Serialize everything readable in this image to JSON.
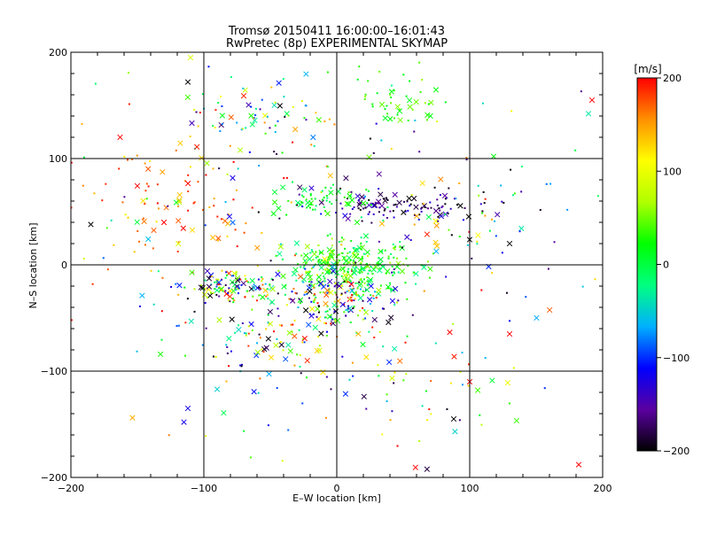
{
  "chart_data": {
    "type": "scatter",
    "title": "Tromsø 20150411 16:00:00–16:01:43",
    "subtitle": "RwPretec (8p) EXPERIMENTAL SKYMAP",
    "xlabel": "E–W location [km]",
    "ylabel": "N–S location [km]",
    "xlim": [
      -200,
      200
    ],
    "ylim": [
      -200,
      200
    ],
    "x_ticks": [
      -200,
      -100,
      0,
      100,
      200
    ],
    "y_ticks": [
      -200,
      -100,
      0,
      100,
      200
    ],
    "x_tick_labels": [
      "−200",
      "−100",
      "0",
      "100",
      "200"
    ],
    "y_tick_labels": [
      "−200",
      "−100",
      "0",
      "100",
      "200"
    ],
    "grid": true,
    "colorbar": {
      "label": "[m/s]",
      "range": [
        -200,
        200
      ],
      "ticks": [
        200,
        100,
        0,
        -100,
        -200
      ],
      "tick_labels": [
        "200",
        "100",
        "0",
        "−100",
        "−200"
      ],
      "colors": [
        "#000000",
        "#5a00a0",
        "#0000ff",
        "#00b0ff",
        "#00ff80",
        "#00ff00",
        "#b0ff00",
        "#ffff00",
        "#ff9000",
        "#ff0000"
      ]
    },
    "marker_legend": {
      "dot": "small point",
      "cross": "x marker"
    },
    "clusters": [
      {
        "x": 50,
        "y": 155,
        "sx": 13,
        "sy": 12,
        "n": 45,
        "vmin": 10,
        "vmax": 60
      },
      {
        "x": -55,
        "y": 140,
        "sx": 30,
        "sy": 18,
        "n": 70,
        "vmin": -210,
        "vmax": 200
      },
      {
        "x": 50,
        "y": 55,
        "sx": 35,
        "sy": 7,
        "n": 110,
        "vmin": -210,
        "vmax": -120
      },
      {
        "x": -10,
        "y": 62,
        "sx": 20,
        "sy": 8,
        "n": 60,
        "vmin": -20,
        "vmax": 40
      },
      {
        "x": 10,
        "y": 0,
        "sx": 22,
        "sy": 12,
        "n": 260,
        "vmin": -30,
        "vmax": 70
      },
      {
        "x": -80,
        "y": -20,
        "sx": 18,
        "sy": 8,
        "n": 110,
        "vmin": -210,
        "vmax": 210
      },
      {
        "x": 0,
        "y": -35,
        "sx": 20,
        "sy": 15,
        "n": 170,
        "vmin": -210,
        "vmax": 210
      },
      {
        "x": -40,
        "y": -60,
        "sx": 40,
        "sy": 25,
        "n": 120,
        "vmin": -210,
        "vmax": 210
      },
      {
        "x": -130,
        "y": 60,
        "sx": 40,
        "sy": 35,
        "n": 90,
        "vmin": 120,
        "vmax": 210
      },
      {
        "x": 0,
        "y": 0,
        "sx": 110,
        "sy": 90,
        "n": 220,
        "vmin": -210,
        "vmax": 210
      },
      {
        "x": 60,
        "y": -120,
        "sx": 35,
        "sy": 20,
        "n": 35,
        "vmin": -210,
        "vmax": 210
      },
      {
        "x": 100,
        "y": 30,
        "sx": 30,
        "sy": 25,
        "n": 40,
        "vmin": -210,
        "vmax": 210
      }
    ],
    "notable_points": [
      {
        "x": 192,
        "y": 155,
        "v": 200,
        "marker": "cross"
      },
      {
        "x": 182,
        "y": -188,
        "v": 200,
        "marker": "cross"
      },
      {
        "x": -185,
        "y": 38,
        "v": -200,
        "marker": "cross"
      },
      {
        "x": -163,
        "y": 120,
        "v": 200,
        "marker": "cross"
      },
      {
        "x": -110,
        "y": 195,
        "v": 90,
        "marker": "cross"
      },
      {
        "x": -112,
        "y": 172,
        "v": -200,
        "marker": "cross"
      },
      {
        "x": 88,
        "y": -145,
        "v": -200,
        "marker": "cross"
      },
      {
        "x": 100,
        "y": -110,
        "v": 200,
        "marker": "cross"
      },
      {
        "x": 130,
        "y": 20,
        "v": -200,
        "marker": "cross"
      },
      {
        "x": 118,
        "y": 102,
        "v": 20,
        "marker": "cross"
      },
      {
        "x": -112,
        "y": -135,
        "v": -120,
        "marker": "cross"
      },
      {
        "x": -115,
        "y": -148,
        "v": -120,
        "marker": "cross"
      },
      {
        "x": 130,
        "y": -65,
        "v": 200,
        "marker": "cross"
      }
    ]
  }
}
